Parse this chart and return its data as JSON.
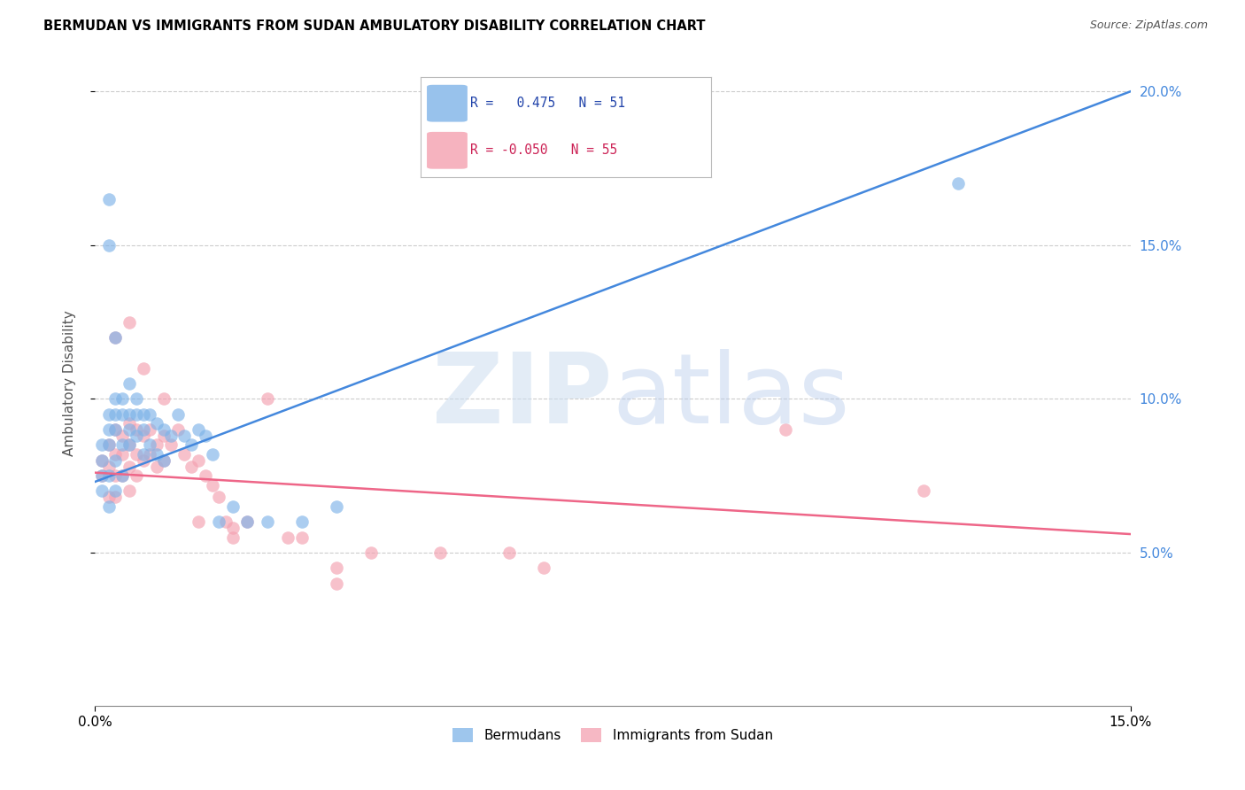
{
  "title": "BERMUDAN VS IMMIGRANTS FROM SUDAN AMBULATORY DISABILITY CORRELATION CHART",
  "source": "Source: ZipAtlas.com",
  "ylabel": "Ambulatory Disability",
  "xlim": [
    0.0,
    0.15
  ],
  "ylim": [
    0.0,
    0.21
  ],
  "yticks": [
    0.05,
    0.1,
    0.15,
    0.2
  ],
  "ytick_labels": [
    "5.0%",
    "10.0%",
    "15.0%",
    "20.0%"
  ],
  "xtick_left": "0.0%",
  "xtick_right": "15.0%",
  "blue_R": 0.475,
  "blue_N": 51,
  "pink_R": -0.05,
  "pink_N": 55,
  "blue_color": "#7EB3E8",
  "pink_color": "#F4A0B0",
  "blue_line_color": "#4488DD",
  "pink_line_color": "#EE6688",
  "legend_label_blue": "Bermudans",
  "legend_label_pink": "Immigrants from Sudan",
  "blue_line_x0": 0.0,
  "blue_line_y0": 0.073,
  "blue_line_x1": 0.15,
  "blue_line_y1": 0.2,
  "pink_line_x0": 0.0,
  "pink_line_y0": 0.076,
  "pink_line_x1": 0.15,
  "pink_line_y1": 0.056,
  "blue_scatter_x": [
    0.001,
    0.001,
    0.001,
    0.001,
    0.002,
    0.002,
    0.002,
    0.002,
    0.002,
    0.003,
    0.003,
    0.003,
    0.003,
    0.003,
    0.004,
    0.004,
    0.004,
    0.004,
    0.005,
    0.005,
    0.005,
    0.005,
    0.006,
    0.006,
    0.006,
    0.007,
    0.007,
    0.007,
    0.008,
    0.008,
    0.009,
    0.009,
    0.01,
    0.01,
    0.011,
    0.012,
    0.013,
    0.014,
    0.015,
    0.016,
    0.017,
    0.018,
    0.02,
    0.022,
    0.025,
    0.03,
    0.035,
    0.002,
    0.002,
    0.125,
    0.003
  ],
  "blue_scatter_y": [
    0.075,
    0.08,
    0.085,
    0.07,
    0.09,
    0.085,
    0.075,
    0.095,
    0.065,
    0.1,
    0.095,
    0.09,
    0.08,
    0.07,
    0.1,
    0.095,
    0.085,
    0.075,
    0.105,
    0.095,
    0.09,
    0.085,
    0.1,
    0.095,
    0.088,
    0.095,
    0.09,
    0.082,
    0.095,
    0.085,
    0.092,
    0.082,
    0.09,
    0.08,
    0.088,
    0.095,
    0.088,
    0.085,
    0.09,
    0.088,
    0.082,
    0.06,
    0.065,
    0.06,
    0.06,
    0.06,
    0.065,
    0.15,
    0.165,
    0.17,
    0.12
  ],
  "pink_scatter_x": [
    0.001,
    0.001,
    0.002,
    0.002,
    0.002,
    0.003,
    0.003,
    0.003,
    0.003,
    0.004,
    0.004,
    0.004,
    0.005,
    0.005,
    0.005,
    0.005,
    0.006,
    0.006,
    0.006,
    0.007,
    0.007,
    0.008,
    0.008,
    0.009,
    0.009,
    0.01,
    0.01,
    0.011,
    0.012,
    0.013,
    0.014,
    0.015,
    0.016,
    0.017,
    0.018,
    0.019,
    0.02,
    0.022,
    0.025,
    0.028,
    0.03,
    0.035,
    0.04,
    0.05,
    0.06,
    0.1,
    0.12,
    0.003,
    0.005,
    0.007,
    0.01,
    0.015,
    0.02,
    0.035,
    0.065
  ],
  "pink_scatter_y": [
    0.08,
    0.075,
    0.085,
    0.078,
    0.068,
    0.09,
    0.082,
    0.075,
    0.068,
    0.088,
    0.082,
    0.075,
    0.092,
    0.085,
    0.078,
    0.07,
    0.09,
    0.082,
    0.075,
    0.088,
    0.08,
    0.09,
    0.082,
    0.085,
    0.078,
    0.088,
    0.08,
    0.085,
    0.09,
    0.082,
    0.078,
    0.08,
    0.075,
    0.072,
    0.068,
    0.06,
    0.058,
    0.06,
    0.1,
    0.055,
    0.055,
    0.045,
    0.05,
    0.05,
    0.05,
    0.09,
    0.07,
    0.12,
    0.125,
    0.11,
    0.1,
    0.06,
    0.055,
    0.04,
    0.045
  ]
}
